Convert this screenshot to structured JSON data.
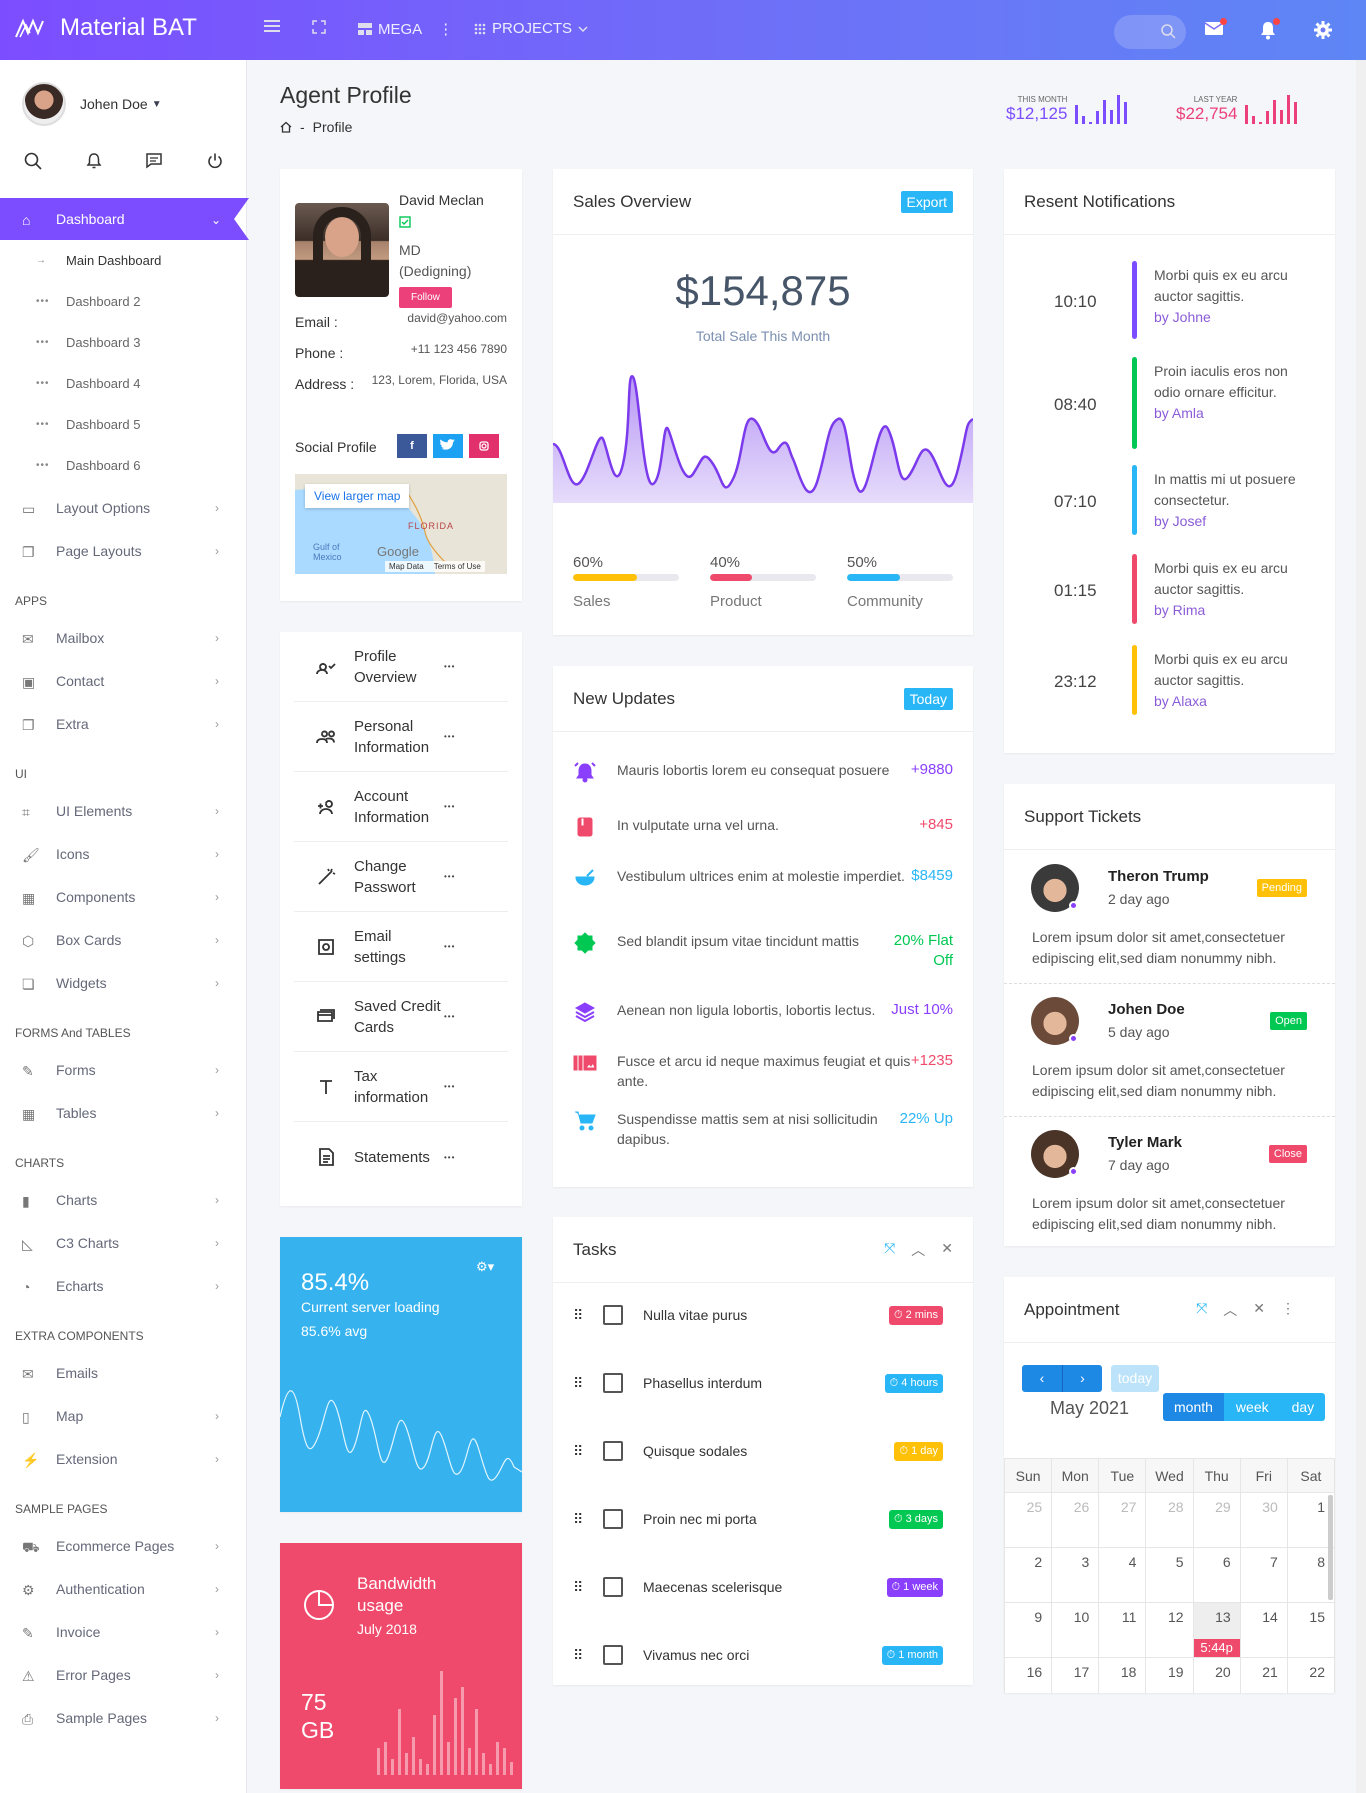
{
  "app": {
    "title": "Material BAT"
  },
  "topbar": {
    "mega": "MEGA",
    "projects": "PROJECTS"
  },
  "sidebar": {
    "user_name": "Johen Doe",
    "menu": [
      {
        "type": "item",
        "label": "Dashboard",
        "icon": "home-icon",
        "active": true
      },
      {
        "type": "sub",
        "label": "Main Dashboard",
        "current": true
      },
      {
        "type": "sub",
        "label": "Dashboard 2"
      },
      {
        "type": "sub",
        "label": "Dashboard 3"
      },
      {
        "type": "sub",
        "label": "Dashboard 4"
      },
      {
        "type": "sub",
        "label": "Dashboard 5"
      },
      {
        "type": "sub",
        "label": "Dashboard 6"
      },
      {
        "type": "item",
        "label": "Layout Options",
        "icon": "monitor-icon"
      },
      {
        "type": "item",
        "label": "Page Layouts",
        "icon": "copy-icon"
      },
      {
        "type": "section",
        "label": "APPS"
      },
      {
        "type": "item",
        "label": "Mailbox",
        "icon": "mail-icon"
      },
      {
        "type": "item",
        "label": "Contact",
        "icon": "contact-icon"
      },
      {
        "type": "item",
        "label": "Extra",
        "icon": "copy-icon"
      },
      {
        "type": "section",
        "label": "UI"
      },
      {
        "type": "item",
        "label": "UI Elements",
        "icon": "crop-icon"
      },
      {
        "type": "item",
        "label": "Icons",
        "icon": "brush-icon"
      },
      {
        "type": "item",
        "label": "Components",
        "icon": "grid-icon"
      },
      {
        "type": "item",
        "label": "Box Cards",
        "icon": "box-icon"
      },
      {
        "type": "item",
        "label": "Widgets",
        "icon": "widget-icon"
      },
      {
        "type": "section",
        "label": "FORMS And TABLES"
      },
      {
        "type": "item",
        "label": "Forms",
        "icon": "pen-icon"
      },
      {
        "type": "item",
        "label": "Tables",
        "icon": "table-icon"
      },
      {
        "type": "section",
        "label": "CHARTS"
      },
      {
        "type": "item",
        "label": "Charts",
        "icon": "bar-chart-icon"
      },
      {
        "type": "item",
        "label": "C3 Charts",
        "icon": "area-chart-icon"
      },
      {
        "type": "item",
        "label": "Echarts",
        "icon": "pie-icon"
      },
      {
        "type": "section",
        "label": "EXTRA COMPONENTS"
      },
      {
        "type": "item",
        "label": "Emails",
        "icon": "mail-icon",
        "nochev": true
      },
      {
        "type": "item",
        "label": "Map",
        "icon": "map-icon"
      },
      {
        "type": "item",
        "label": "Extension",
        "icon": "plug-icon"
      },
      {
        "type": "section",
        "label": "SAMPLE PAGES"
      },
      {
        "type": "item",
        "label": "Ecommerce Pages",
        "icon": "basket-icon"
      },
      {
        "type": "item",
        "label": "Authentication",
        "icon": "gear-icon"
      },
      {
        "type": "item",
        "label": "Invoice",
        "icon": "pen-icon"
      },
      {
        "type": "item",
        "label": "Error Pages",
        "icon": "warning-icon"
      },
      {
        "type": "item",
        "label": "Sample Pages",
        "icon": "print-icon"
      }
    ]
  },
  "page": {
    "title": "Agent Profile",
    "crumb": "Profile",
    "crumb_sep": "-"
  },
  "stats": [
    {
      "label": "THIS MONTH",
      "value": "$12,125",
      "color": "#7c4dff",
      "bars": [
        0.6,
        0.25,
        0.05,
        0.4,
        0.75,
        0.45,
        0.9,
        0.7
      ]
    },
    {
      "label": "LAST YEAR",
      "value": "$22,754",
      "color": "#ec407a",
      "bars": [
        0.6,
        0.25,
        0.05,
        0.4,
        0.75,
        0.45,
        0.9,
        0.7
      ]
    }
  ],
  "profile": {
    "name": "David Meclan",
    "role": "MD (Dedigning)",
    "follow": "Follow",
    "fields": [
      {
        "k": "Email :",
        "v": "david@yahoo.com"
      },
      {
        "k": "Phone :",
        "v": "+11 123 456 7890"
      },
      {
        "k": "Address :",
        "v": "123, Lorem, Florida, USA"
      }
    ],
    "social_label": "Social Profile",
    "map": {
      "link": "View larger map",
      "state": "FLORIDA",
      "gulf": "Gulf of Mexico",
      "brand": "Google",
      "data": "Map Data",
      "terms": "Terms of Use"
    }
  },
  "profile_menu": [
    {
      "label": "Profile Overview",
      "icon": "person-check-icon"
    },
    {
      "label": "Personal Information",
      "icon": "people-icon"
    },
    {
      "label": "Account Information",
      "icon": "person-add-icon"
    },
    {
      "label": "Change Passwort",
      "icon": "magic-wand-icon"
    },
    {
      "label": "Email settings",
      "icon": "settings-box-icon"
    },
    {
      "label": "Saved Credit Cards",
      "icon": "cards-icon"
    },
    {
      "label": "Tax information",
      "icon": "text-icon"
    },
    {
      "label": "Statements",
      "icon": "document-icon"
    }
  ],
  "server": {
    "percent": "85.4%",
    "label": "Current server loading",
    "avg": "85.6% avg"
  },
  "bandwidth": {
    "title": "Bandwidth usage",
    "date": "July 2018",
    "amount": "75",
    "unit": "GB"
  },
  "sales": {
    "title": "Sales Overview",
    "export": "Export",
    "total": "$154,875",
    "subtitle": "Total Sale This Month",
    "progress": [
      {
        "pct": "60%",
        "value": 0.6,
        "label": "Sales",
        "color": "#ffc107"
      },
      {
        "pct": "40%",
        "value": 0.4,
        "label": "Product",
        "color": "#ef4a6b"
      },
      {
        "pct": "50%",
        "value": 0.5,
        "label": "Community",
        "color": "#29b6f6"
      }
    ]
  },
  "updates": {
    "title": "New Updates",
    "badge": "Today",
    "items": [
      {
        "text": "Mauris lobortis lorem eu consequat posuere",
        "value": "+9880",
        "color": "#8a3ffc",
        "icon": "alarm-icon"
      },
      {
        "text": "In vulputate urna vel urna.",
        "value": "+845",
        "color": "#ef4a6b",
        "icon": "book-icon"
      },
      {
        "text": "Vestibulum ultrices enim at molestie imperdiet.",
        "value": "$8459",
        "color": "#29b6f6",
        "icon": "bowl-icon"
      },
      {
        "text": "Sed blandit ipsum vitae tincidunt mattis",
        "value": "20% Flat Off",
        "color": "#00c853",
        "icon": "badge-a-icon"
      },
      {
        "text": "Aenean non ligula lobortis, lobortis lectus.",
        "value": "Just 10%",
        "color": "#8a3ffc",
        "icon": "layers-icon"
      },
      {
        "text": "Fusce et arcu id neque maximus feugiat et quis ante.",
        "value": "+1235",
        "color": "#ef4a6b",
        "icon": "image-icon"
      },
      {
        "text": "Suspendisse mattis sem at nisi sollicitudin dapibus.",
        "value": "22% Up",
        "color": "#29b6f6",
        "icon": "cart-icon"
      }
    ]
  },
  "tasks": {
    "title": "Tasks",
    "items": [
      {
        "label": "Nulla vitae purus",
        "tag": "2 mins",
        "color": "#ef4a6b"
      },
      {
        "label": "Phasellus interdum",
        "tag": "4 hours",
        "color": "#29b6f6"
      },
      {
        "label": "Quisque sodales",
        "tag": "1 day",
        "color": "#ffc107"
      },
      {
        "label": "Proin nec mi porta",
        "tag": "3 days",
        "color": "#00c853"
      },
      {
        "label": "Maecenas scelerisque",
        "tag": "1 week",
        "color": "#8a3ffc"
      },
      {
        "label": "Vivamus nec orci",
        "tag": "1 month",
        "color": "#29b6f6"
      }
    ]
  },
  "notifications": {
    "title": "Resent Notifications",
    "items": [
      {
        "time": "10:10",
        "text": "Morbi quis ex eu arcu auctor sagittis.",
        "by": "by Johne",
        "color": "#7c4dff"
      },
      {
        "time": "08:40",
        "text": "Proin iaculis eros non odio ornare efficitur.",
        "by": "by Amla",
        "color": "#00c853"
      },
      {
        "time": "07:10",
        "text": "In mattis mi ut posuere consectetur.",
        "by": "by Josef",
        "color": "#29b6f6"
      },
      {
        "time": "01:15",
        "text": "Morbi quis ex eu arcu auctor sagittis.",
        "by": "by Rima",
        "color": "#ef4a6b"
      },
      {
        "time": "23:12",
        "text": "Morbi quis ex eu arcu auctor sagittis.",
        "by": "by Alaxa",
        "color": "#ffc107"
      }
    ]
  },
  "tickets": {
    "title": "Support Tickets",
    "items": [
      {
        "name": "Theron Trump",
        "ago": "2 day ago",
        "status": "Pending",
        "color": "#ffc107",
        "text": "Lorem ipsum dolor sit amet,consectetuer edipiscing elit,sed diam nonummy nibh."
      },
      {
        "name": "Johen Doe",
        "ago": "5 day ago",
        "status": "Open",
        "color": "#00c853",
        "text": "Lorem ipsum dolor sit amet,consectetuer edipiscing elit,sed diam nonummy nibh."
      },
      {
        "name": "Tyler Mark",
        "ago": "7 day ago",
        "status": "Close",
        "color": "#ef4a6b",
        "text": "Lorem ipsum dolor sit amet,consectetuer edipiscing elit,sed diam nonummy nibh."
      }
    ]
  },
  "appointment": {
    "title": "Appointment",
    "today": "today",
    "month_label": "May 2021",
    "views": [
      "month",
      "week",
      "day"
    ],
    "weekdays": [
      "Sun",
      "Mon",
      "Tue",
      "Wed",
      "Thu",
      "Fri",
      "Sat"
    ],
    "weeks": [
      [
        "25",
        "26",
        "27",
        "28",
        "29",
        "30",
        "1"
      ],
      [
        "2",
        "3",
        "4",
        "5",
        "6",
        "7",
        "8"
      ],
      [
        "9",
        "10",
        "11",
        "12",
        "13",
        "14",
        "15"
      ],
      [
        "16",
        "17",
        "18",
        "19",
        "20",
        "21",
        "22"
      ]
    ],
    "event": "5:44p"
  }
}
